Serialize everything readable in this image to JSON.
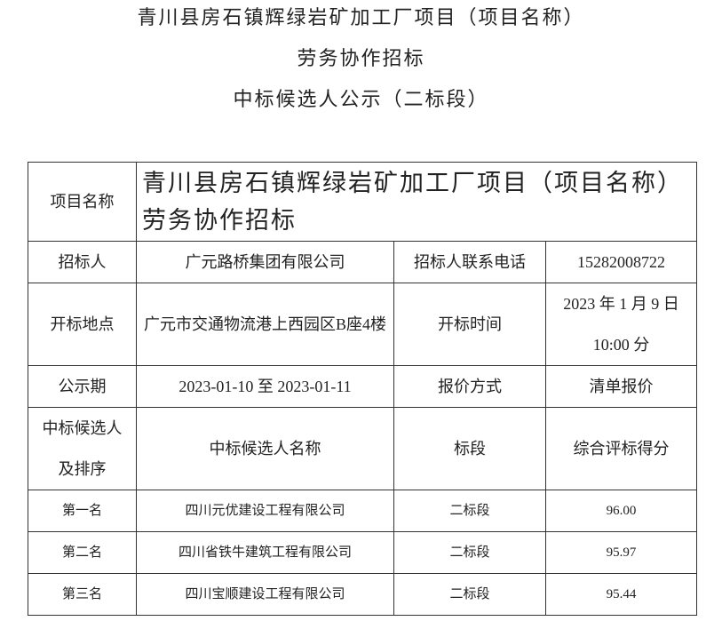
{
  "header": {
    "lines": [
      "青川县房石镇辉绿岩矿加工厂项目（项目名称）",
      "劳务协作招标",
      "中标候选人公示（二标段）"
    ]
  },
  "table": {
    "rows": [
      [
        "项目名称",
        "青川县房石镇辉绿岩矿加工厂项目（项目名称）劳务协作招标"
      ],
      [
        "招标人",
        "广元路桥集团有限公司",
        "招标人联系电话",
        "15282008722"
      ],
      [
        "开标地点",
        "广元市交通物流港上西园区B座4楼",
        "开标时间",
        "2023 年 1 月 9 日 10:00 分"
      ],
      [
        "公示期",
        "2023-01-10 至 2023-01-11",
        "报价方式",
        "清单报价"
      ],
      [
        "中标候选人及排序",
        "中标候选人名称",
        "标段",
        "综合评标得分"
      ],
      [
        "第一名",
        "四川元优建设工程有限公司",
        "二标段",
        "96.00"
      ],
      [
        "第二名",
        "四川省铁牛建筑工程有限公司",
        "二标段",
        "95.97"
      ],
      [
        "第三名",
        "四川宝顺建设工程有限公司",
        "二标段",
        "95.44"
      ]
    ]
  }
}
